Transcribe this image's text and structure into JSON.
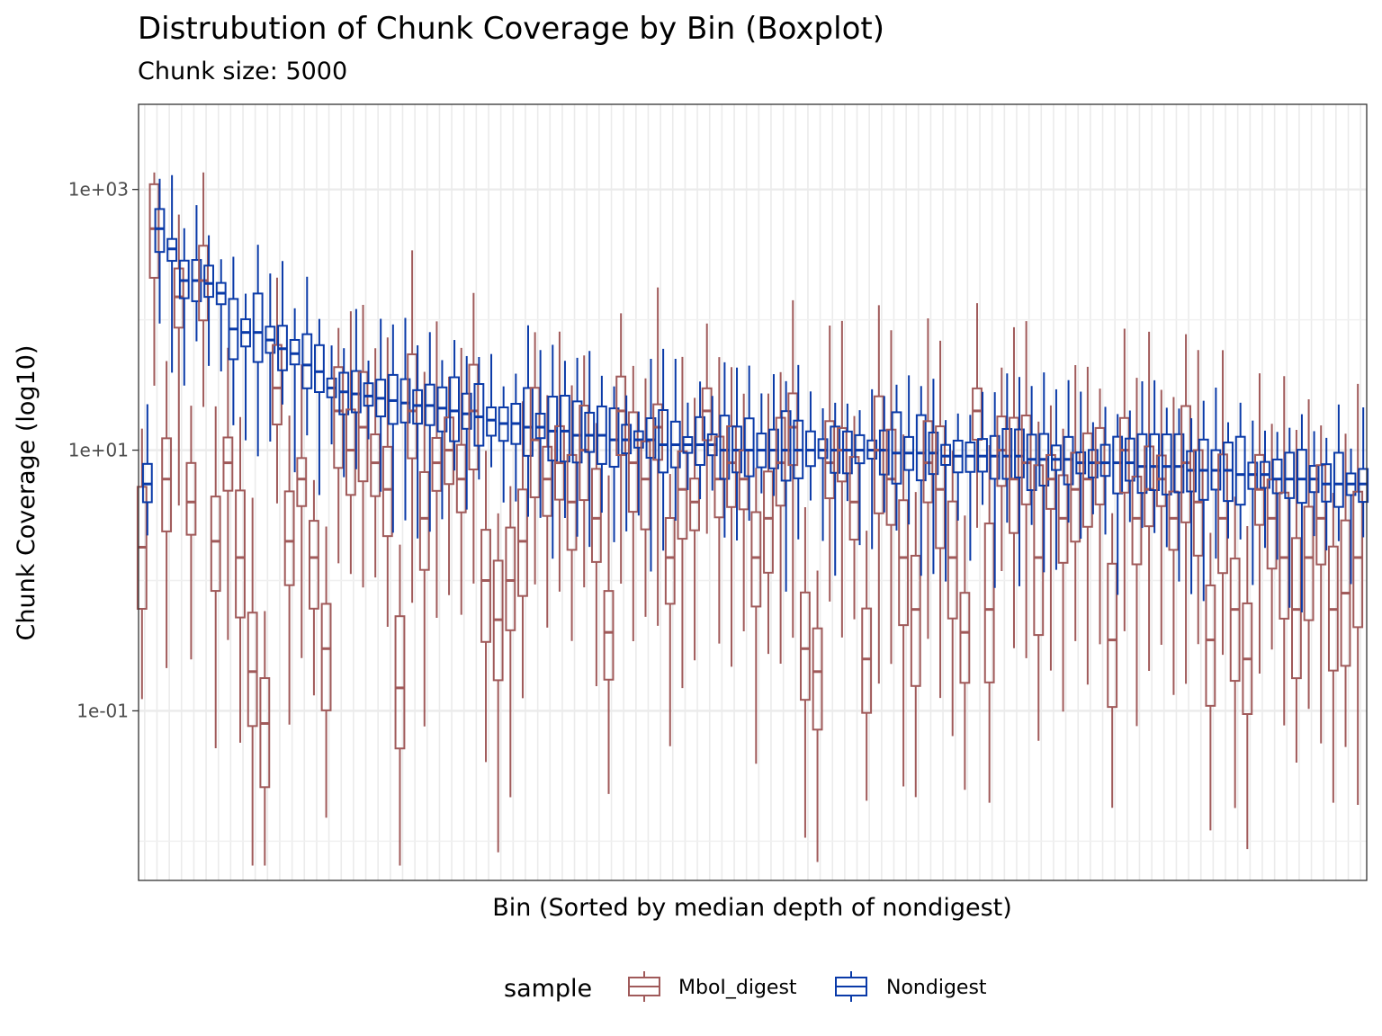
{
  "chart_data": {
    "type": "boxplot",
    "title": "Distrubution of Chunk Coverage by Bin (Boxplot)",
    "subtitle": "Chunk size: 5000",
    "xlabel": "Bin (Sorted by median depth of nondigest)",
    "ylabel": "Chunk Coverage (log10)",
    "y_scale": "log10",
    "ylim": [
      0.005,
      4500
    ],
    "y_ticks": [
      {
        "value": 0.1,
        "label": "1e-01"
      },
      {
        "value": 10,
        "label": "1e+01"
      },
      {
        "value": 1000,
        "label": "1e+03"
      }
    ],
    "y_minor_gridlines": [
      0.01,
      1,
      100
    ],
    "n_bins": 100,
    "grid": true,
    "legend": {
      "title": "sample",
      "position": "bottom",
      "entries": [
        "MboI_digest",
        "Nondigest"
      ]
    },
    "colors": {
      "MboI_digest": "#a05a5a",
      "Nondigest": "#0a3aa8"
    },
    "series": [
      {
        "name": "Nondigest",
        "medians": [
          5.5,
          500,
          350,
          200,
          200,
          190,
          160,
          85,
          80,
          80,
          70,
          60,
          55,
          45,
          40,
          30,
          28,
          27,
          26,
          25,
          24,
          23,
          22,
          22,
          21,
          20,
          19,
          18,
          17,
          16,
          16,
          15,
          15,
          14,
          14,
          13,
          13,
          13,
          12,
          12,
          12,
          12,
          11,
          11,
          11,
          11,
          11,
          10,
          10,
          10,
          10,
          10,
          10,
          10,
          10,
          10,
          10,
          10,
          10,
          10,
          10,
          9.5,
          9.5,
          9.5,
          9.5,
          9,
          9,
          9,
          9,
          9,
          9,
          9,
          8.5,
          8.5,
          8.5,
          8.5,
          8,
          8,
          8,
          8,
          8,
          7.5,
          7.5,
          7.5,
          7.5,
          7,
          7,
          7,
          7,
          6.5,
          6.5,
          6.5,
          6,
          6,
          6,
          6,
          5.5,
          5.5,
          5.5,
          5.5
        ]
      },
      {
        "name": "MboI_digest",
        "medians": [
          1.8,
          500,
          6,
          150,
          4,
          200,
          2,
          8,
          1.5,
          0.2,
          0.08,
          30,
          2,
          6,
          1.5,
          0.3,
          20,
          10,
          15,
          8,
          5,
          0.15,
          20,
          3,
          8,
          10,
          6,
          20,
          1,
          0.5,
          1,
          2,
          12,
          6,
          8,
          4,
          10,
          3,
          0.4,
          20,
          8,
          6,
          15,
          1.5,
          5,
          4,
          20,
          6,
          8,
          6,
          1.5,
          3,
          8,
          15,
          0.3,
          0.2,
          8,
          10,
          4,
          0.25,
          10,
          6,
          1.5,
          0.6,
          8,
          5,
          1.5,
          0.4,
          20,
          0.6,
          10,
          6,
          8,
          1.5,
          6,
          3,
          5,
          6,
          8,
          0.35,
          10,
          3,
          5,
          6,
          3,
          8,
          4,
          0.35,
          3,
          0.6,
          0.25,
          5,
          3,
          1.5,
          0.6,
          1.5,
          3,
          0.6,
          0.8,
          1.5
        ]
      }
    ]
  }
}
